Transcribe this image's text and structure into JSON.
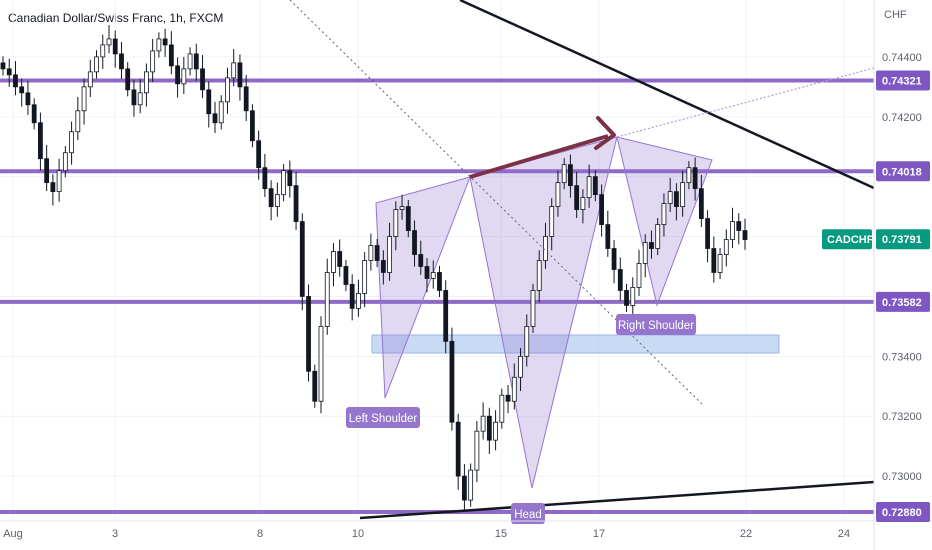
{
  "chart_data": {
    "type": "candlestick",
    "title": "Canadian Dollar/Swiss Franc, 1h, FXCM",
    "symbol": "CADCHF",
    "currency": "CHF",
    "ylim": [
      0.7285,
      0.7459
    ],
    "y_ticks": [
      "0.74400",
      "0.74200",
      "0.74000",
      "0.73800",
      "0.73600",
      "0.73400",
      "0.73200",
      "0.73000"
    ],
    "x_ticks": [
      "Aug",
      "3",
      "8",
      "10",
      "15",
      "17",
      "22",
      "24"
    ],
    "current_price": "0.73791",
    "levels": [
      "0.74321",
      "0.74018",
      "0.73582",
      "0.72880"
    ],
    "zone": {
      "low": 0.7338,
      "high": 0.7344
    },
    "annotations": [
      "Left Shoulder",
      "Head",
      "Right Shoulder"
    ],
    "pattern_points": [
      {
        "label": "",
        "price": 0.7387
      },
      {
        "label": "Left Shoulder",
        "price": 0.7322
      },
      {
        "label": "",
        "price": 0.7393
      },
      {
        "label": "Head",
        "price": 0.729
      },
      {
        "label": "",
        "price": 0.7408
      },
      {
        "label": "Right Shoulder",
        "price": 0.7354
      },
      {
        "label": "",
        "price": 0.7402
      }
    ],
    "closes": [
      0.7436,
      0.7434,
      0.743,
      0.7428,
      0.7424,
      0.7418,
      0.7406,
      0.7398,
      0.7395,
      0.7402,
      0.7408,
      0.7415,
      0.7422,
      0.743,
      0.7435,
      0.744,
      0.7444,
      0.7446,
      0.7441,
      0.7436,
      0.7429,
      0.7424,
      0.7428,
      0.7435,
      0.7442,
      0.7446,
      0.7444,
      0.7437,
      0.7431,
      0.7436,
      0.7441,
      0.7436,
      0.7429,
      0.7421,
      0.7418,
      0.7425,
      0.7433,
      0.7438,
      0.743,
      0.7422,
      0.7412,
      0.7403,
      0.7396,
      0.739,
      0.7394,
      0.7402,
      0.7397,
      0.7385,
      0.736,
      0.7335,
      0.7325,
      0.735,
      0.7368,
      0.7375,
      0.737,
      0.7364,
      0.7356,
      0.7361,
      0.7372,
      0.7377,
      0.7372,
      0.7368,
      0.738,
      0.7389,
      0.739,
      0.7382,
      0.7374,
      0.737,
      0.7366,
      0.7368,
      0.7362,
      0.7345,
      0.7318,
      0.73,
      0.7292,
      0.7302,
      0.7315,
      0.732,
      0.7312,
      0.7318,
      0.7327,
      0.7325,
      0.7333,
      0.734,
      0.735,
      0.7362,
      0.7372,
      0.738,
      0.739,
      0.7398,
      0.7404,
      0.7397,
      0.7389,
      0.7393,
      0.74,
      0.7394,
      0.7384,
      0.7376,
      0.7369,
      0.7362,
      0.7357,
      0.7363,
      0.7371,
      0.7378,
      0.7376,
      0.7384,
      0.7391,
      0.7395,
      0.739,
      0.7398,
      0.7403,
      0.7396,
      0.7386,
      0.7376,
      0.7368,
      0.7374,
      0.7379,
      0.7385,
      0.7382,
      0.7379
    ]
  }
}
